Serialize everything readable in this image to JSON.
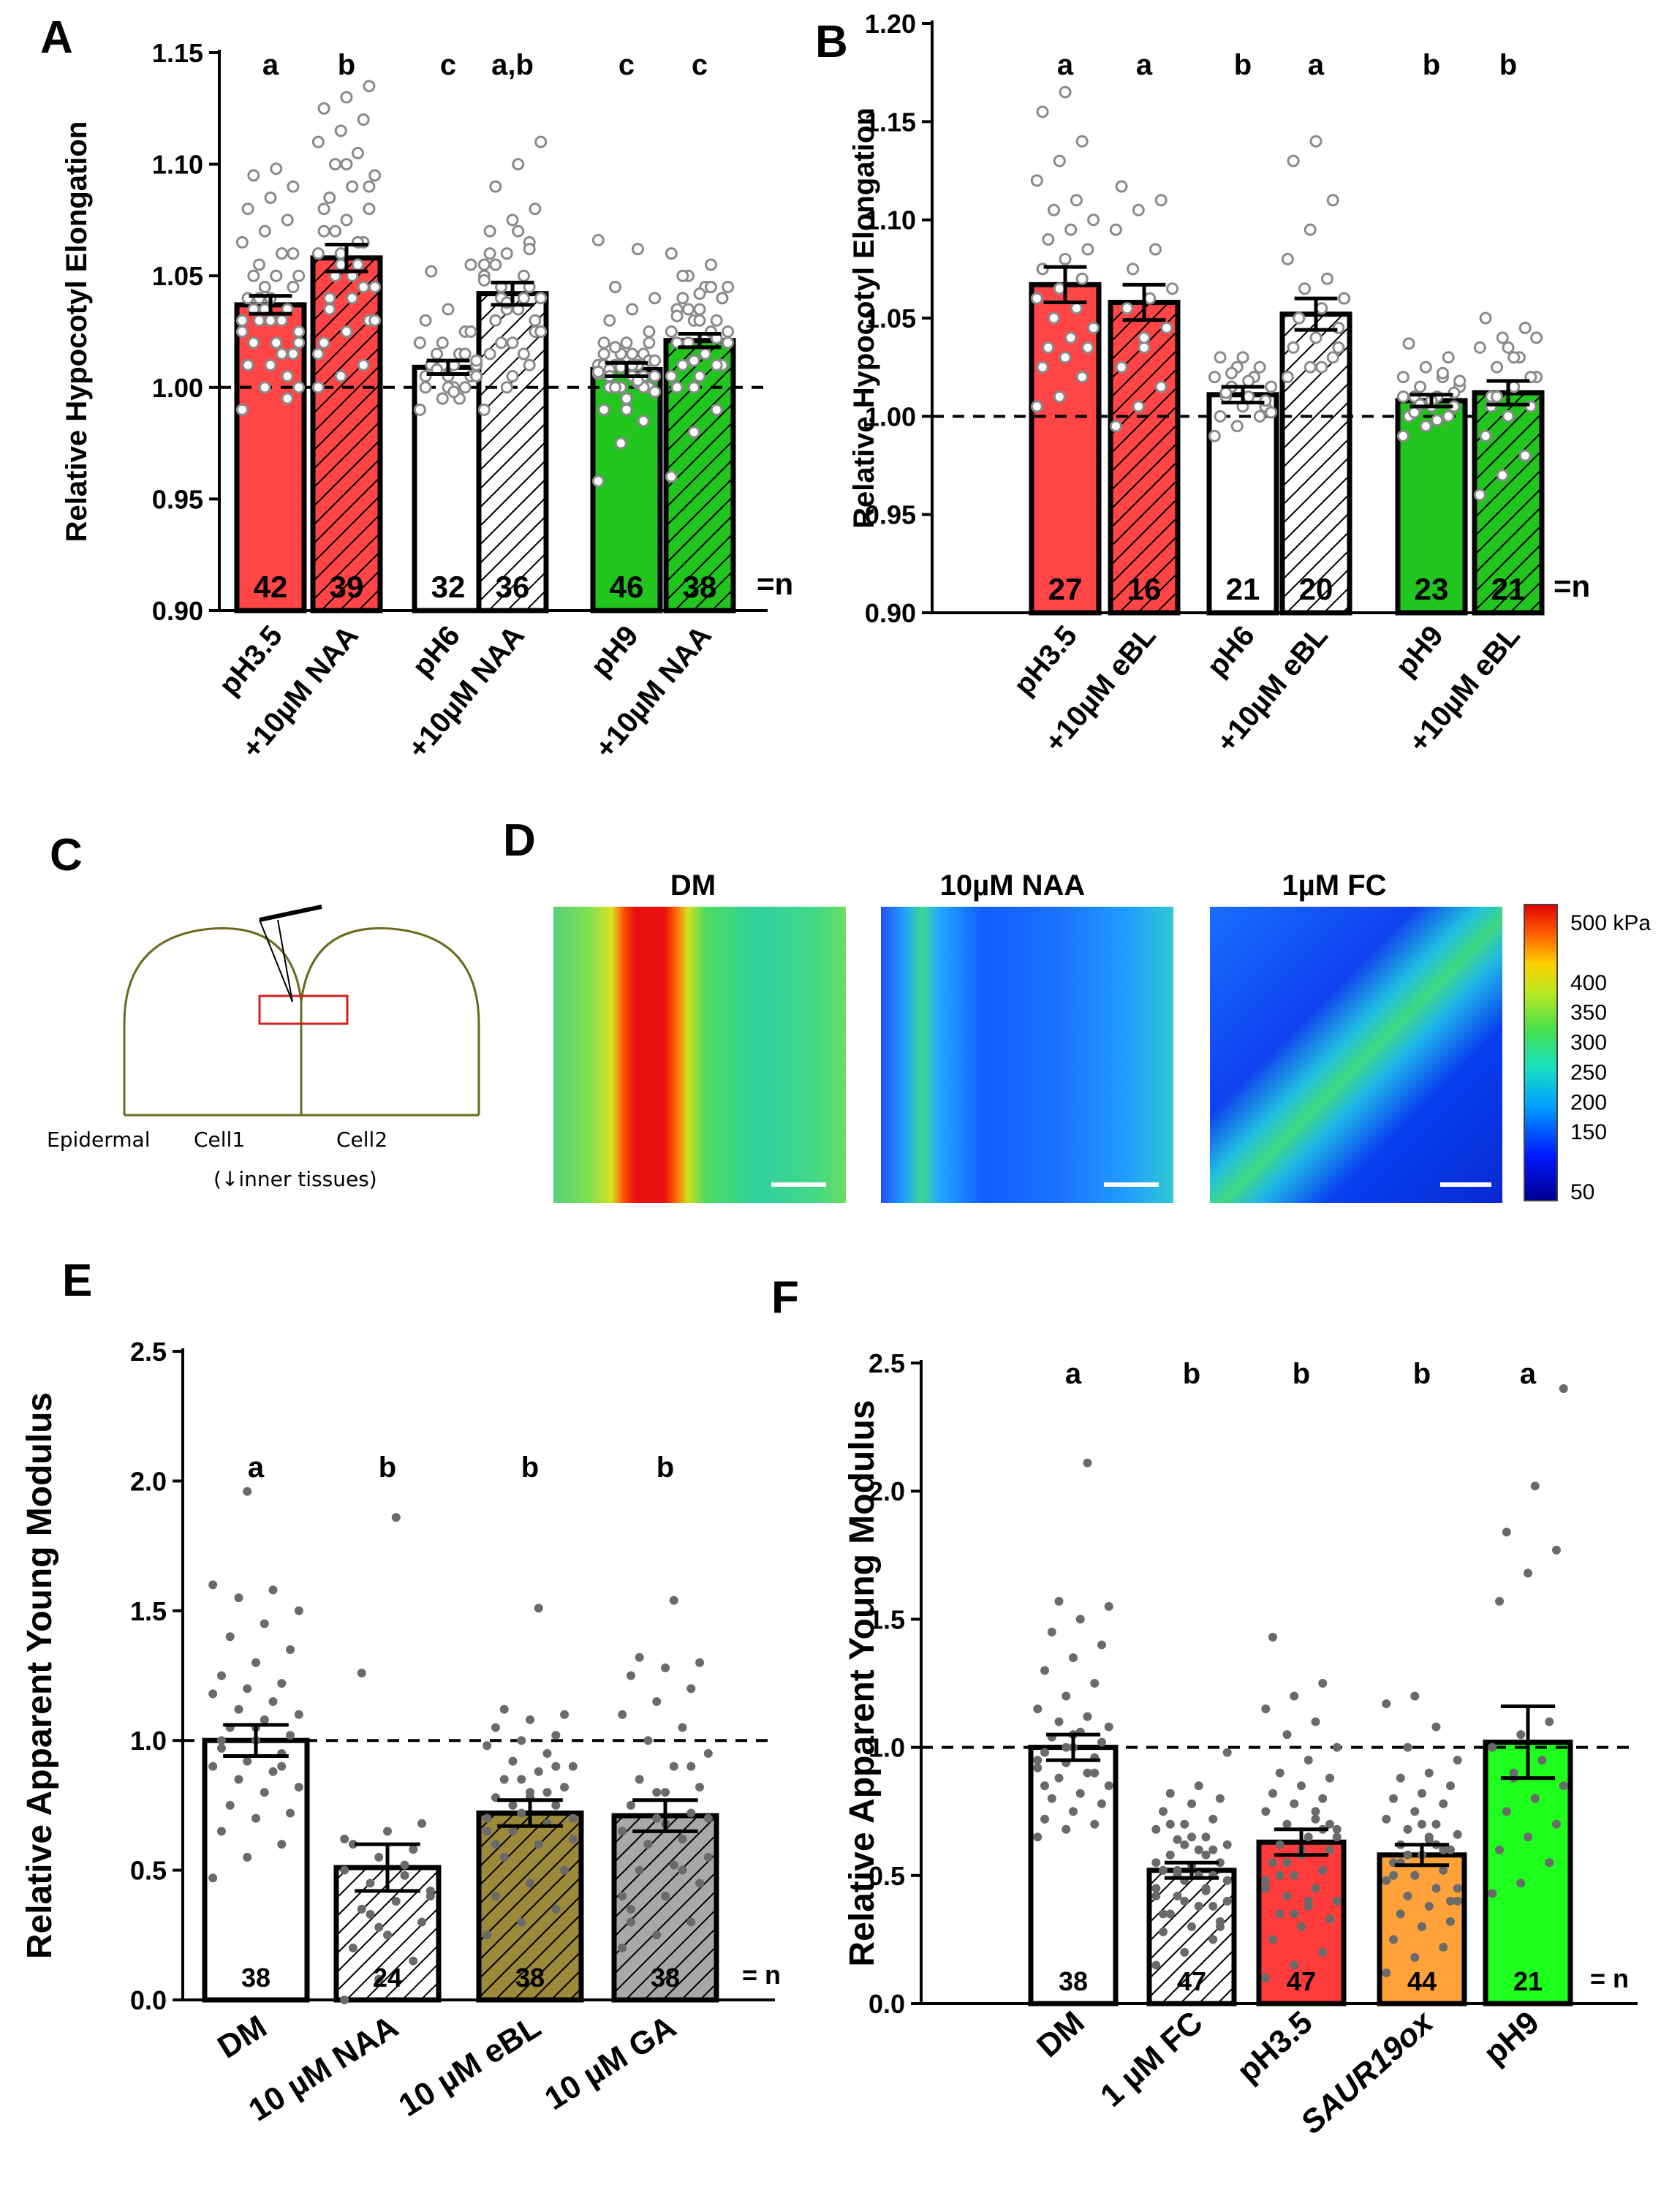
{
  "chart_data": [
    {
      "id": "A",
      "panel_letter": "A",
      "type": "bar",
      "ylabel": "Relative Hypocotyl Elongation",
      "ylim": [
        0.9,
        1.15
      ],
      "yticks": [
        "0.90",
        "0.95",
        "1.00",
        "1.05",
        "1.10",
        "1.15"
      ],
      "yticks_values": [
        0.9,
        0.95,
        1.0,
        1.05,
        1.1,
        1.15
      ],
      "reference_line": 1.0,
      "n_suffix": "=n",
      "categories": [
        [
          "pH3.5"
        ],
        [
          "+10µM NAA"
        ],
        [
          "pH6"
        ],
        [
          "+10µM NAA"
        ],
        [
          "pH9"
        ],
        [
          "+10µM NAA"
        ]
      ],
      "values": [
        1.037,
        1.058,
        1.009,
        1.042,
        1.008,
        1.021
      ],
      "errors": [
        0.004,
        0.006,
        0.003,
        0.005,
        0.003,
        0.003
      ],
      "n": [
        "42",
        "39",
        "32",
        "36",
        "46",
        "38"
      ],
      "letters": [
        "a",
        "b",
        "c",
        "a,b",
        "c",
        "c"
      ],
      "fills": [
        "#ff4545",
        "#ff4545",
        "#ffffff",
        "#ffffff",
        "#22c41e",
        "#22c41e"
      ],
      "hatched": [
        false,
        true,
        false,
        true,
        false,
        true
      ],
      "points": [
        [
          0.99,
          1.0,
          1.005,
          1.01,
          1.01,
          1.015,
          1.02,
          1.02,
          1.025,
          1.03,
          1.03,
          1.03,
          1.035,
          1.035,
          1.04,
          1.04,
          1.045,
          1.05,
          1.05,
          1.05,
          1.055,
          1.06,
          1.065,
          1.07,
          1.075,
          1.08,
          1.085,
          1.09,
          1.095,
          1.098,
          1.02,
          1.04,
          1.015,
          1.025,
          1.045,
          0.995,
          1.01,
          1.03,
          1.06,
          1.035,
          1.05,
          1.0
        ],
        [
          1.0,
          1.005,
          1.01,
          1.02,
          1.025,
          1.03,
          1.035,
          1.04,
          1.045,
          1.05,
          1.055,
          1.06,
          1.06,
          1.065,
          1.07,
          1.075,
          1.08,
          1.085,
          1.09,
          1.095,
          1.1,
          1.105,
          1.11,
          1.115,
          1.12,
          1.125,
          1.13,
          1.135,
          1.04,
          1.05,
          1.03,
          1.07,
          1.065,
          1.015,
          1.055,
          1.045,
          1.08,
          1.1,
          1.09
        ],
        [
          0.99,
          0.995,
          1.0,
          1.0,
          1.005,
          1.005,
          1.01,
          1.01,
          1.01,
          1.015,
          1.015,
          1.02,
          1.02,
          1.025,
          1.03,
          1.035,
          1.055,
          1.052,
          1.0,
          1.005,
          1.01,
          0.995,
          1.02,
          1.01,
          1.015,
          1.005,
          1.0,
          1.025,
          1.01,
          0.998,
          1.012,
          1.008
        ],
        [
          0.99,
          1.0,
          1.01,
          1.015,
          1.02,
          1.025,
          1.03,
          1.035,
          1.04,
          1.045,
          1.05,
          1.055,
          1.06,
          1.065,
          1.07,
          1.075,
          1.08,
          1.09,
          1.1,
          1.11,
          1.02,
          1.04,
          1.05,
          1.035,
          1.045,
          1.06,
          1.005,
          1.03,
          1.055,
          1.07,
          1.025,
          1.04,
          1.015,
          1.048,
          1.038,
          1.062
        ],
        [
          0.958,
          0.975,
          0.985,
          0.99,
          0.995,
          1.0,
          1.0,
          1.005,
          1.005,
          1.01,
          1.01,
          1.01,
          1.015,
          1.015,
          1.02,
          1.02,
          1.025,
          1.03,
          1.035,
          1.04,
          1.045,
          1.062,
          1.066,
          1.0,
          1.005,
          1.01,
          0.995,
          1.012,
          1.008,
          1.015,
          0.998,
          1.018,
          1.002,
          1.006,
          1.01,
          1.0,
          1.015,
          0.99,
          1.02,
          1.005,
          1.01,
          1.012,
          1.0,
          1.003,
          1.007,
          1.009
        ],
        [
          0.96,
          0.98,
          0.99,
          1.0,
          1.005,
          1.01,
          1.01,
          1.015,
          1.02,
          1.02,
          1.025,
          1.025,
          1.03,
          1.03,
          1.035,
          1.035,
          1.04,
          1.04,
          1.045,
          1.045,
          1.05,
          1.055,
          1.06,
          1.0,
          1.01,
          1.02,
          1.03,
          1.04,
          1.05,
          1.015,
          1.025,
          1.035,
          1.045,
          1.005,
          1.012,
          1.022,
          1.032,
          1.042
        ]
      ]
    },
    {
      "id": "B",
      "panel_letter": "B",
      "type": "bar",
      "ylabel": "Relative Hypocotyl Elongation",
      "ylim": [
        0.9,
        1.2
      ],
      "yticks": [
        "0.90",
        "0.95",
        "1.00",
        "1.05",
        "1.10",
        "1.15",
        "1.20"
      ],
      "yticks_values": [
        0.9,
        0.95,
        1.0,
        1.05,
        1.1,
        1.15,
        1.2
      ],
      "reference_line": 1.0,
      "n_suffix": "=n",
      "categories": [
        [
          "pH3.5"
        ],
        [
          "+10µM eBL"
        ],
        [
          "pH6"
        ],
        [
          "+10µM eBL"
        ],
        [
          "pH9"
        ],
        [
          "+10µM eBL"
        ]
      ],
      "values": [
        1.067,
        1.058,
        1.011,
        1.052,
        1.008,
        1.012
      ],
      "errors": [
        0.009,
        0.009,
        0.004,
        0.008,
        0.003,
        0.006
      ],
      "n": [
        "27",
        "16",
        "21",
        "20",
        "23",
        "21"
      ],
      "letters": [
        "a",
        "a",
        "b",
        "a",
        "b",
        "b"
      ],
      "fills": [
        "#ff4545",
        "#ff4545",
        "#ffffff",
        "#ffffff",
        "#22c41e",
        "#22c41e"
      ],
      "hatched": [
        false,
        true,
        false,
        true,
        false,
        true
      ],
      "points": [
        [
          1.005,
          1.01,
          1.02,
          1.025,
          1.03,
          1.035,
          1.035,
          1.04,
          1.045,
          1.05,
          1.055,
          1.06,
          1.065,
          1.07,
          1.075,
          1.08,
          1.085,
          1.09,
          1.095,
          1.1,
          1.105,
          1.11,
          1.12,
          1.13,
          1.14,
          1.155,
          1.165
        ],
        [
          0.995,
          1.005,
          1.015,
          1.025,
          1.035,
          1.045,
          1.055,
          1.06,
          1.065,
          1.075,
          1.085,
          1.095,
          1.105,
          1.11,
          1.117,
          1.04
        ],
        [
          0.99,
          0.995,
          1.0,
          1.0,
          1.005,
          1.005,
          1.01,
          1.01,
          1.015,
          1.015,
          1.02,
          1.02,
          1.025,
          1.025,
          1.03,
          1.03,
          1.008,
          1.012,
          1.018,
          1.002,
          1.022
        ],
        [
          1.02,
          1.025,
          1.03,
          1.035,
          1.04,
          1.045,
          1.05,
          1.055,
          1.06,
          1.065,
          1.07,
          1.08,
          1.095,
          1.11,
          1.13,
          1.14,
          1.035,
          1.05,
          1.025,
          1.06
        ],
        [
          0.99,
          0.995,
          1.0,
          1.0,
          1.005,
          1.005,
          1.01,
          1.01,
          1.015,
          1.015,
          1.02,
          1.02,
          1.025,
          1.03,
          1.037,
          1.008,
          1.012,
          1.002,
          0.998,
          1.018,
          1.006,
          1.022,
          1.01
        ],
        [
          0.96,
          0.97,
          0.98,
          0.99,
          1.0,
          1.005,
          1.01,
          1.015,
          1.02,
          1.025,
          1.03,
          1.035,
          1.04,
          1.045,
          1.05,
          1.035,
          1.02,
          1.005,
          1.03,
          1.04,
          1.01
        ]
      ]
    },
    {
      "id": "E",
      "panel_letter": "E",
      "type": "bar",
      "ylabel": "Relative Apparent Young Modulus",
      "ylim": [
        0.0,
        2.5
      ],
      "yticks": [
        "0.0",
        "0.5",
        "1.0",
        "1.5",
        "2.0",
        "2.5"
      ],
      "yticks_values": [
        0.0,
        0.5,
        1.0,
        1.5,
        2.0,
        2.5
      ],
      "reference_line": 1.0,
      "n_suffix": "= n",
      "categories": [
        [
          "DM"
        ],
        [
          "10 µM NAA"
        ],
        [
          "10 µM eBL"
        ],
        [
          "10 µM GA"
        ]
      ],
      "values": [
        1.0,
        0.51,
        0.72,
        0.71
      ],
      "errors": [
        0.06,
        0.09,
        0.05,
        0.06
      ],
      "n": [
        "38",
        "24",
        "38",
        "38"
      ],
      "letters": [
        "a",
        "b",
        "b",
        "b"
      ],
      "fills": [
        "#ffffff",
        "#ffffff",
        "#9c8a3a",
        "#a8a8a8"
      ],
      "hatched": [
        false,
        true,
        true,
        true
      ],
      "points": [
        [
          0.47,
          0.55,
          0.6,
          0.65,
          0.7,
          0.72,
          0.75,
          0.8,
          0.82,
          0.85,
          0.88,
          0.9,
          0.92,
          0.95,
          0.97,
          1.0,
          1.02,
          1.05,
          1.08,
          1.1,
          1.12,
          1.15,
          1.18,
          1.2,
          1.22,
          1.25,
          1.3,
          1.35,
          1.4,
          1.45,
          1.5,
          1.55,
          1.58,
          1.6,
          1.96,
          0.9,
          1.0,
          1.05
        ],
        [
          0.0,
          0.08,
          0.15,
          0.2,
          0.25,
          0.3,
          0.35,
          0.38,
          0.42,
          0.45,
          0.48,
          0.5,
          0.55,
          0.58,
          0.6,
          0.65,
          0.68,
          1.26,
          1.86,
          0.4,
          0.33,
          0.52,
          0.62,
          0.28
        ],
        [
          0.25,
          0.3,
          0.35,
          0.4,
          0.45,
          0.5,
          0.55,
          0.6,
          0.62,
          0.65,
          0.68,
          0.7,
          0.72,
          0.75,
          0.78,
          0.8,
          0.82,
          0.85,
          0.88,
          0.9,
          0.92,
          0.95,
          0.98,
          1.0,
          1.02,
          1.05,
          1.08,
          1.1,
          1.12,
          1.51,
          0.7,
          0.75,
          0.8,
          0.65,
          0.85,
          0.9,
          0.6,
          0.78
        ],
        [
          0.2,
          0.25,
          0.3,
          0.35,
          0.4,
          0.45,
          0.5,
          0.52,
          0.55,
          0.6,
          0.62,
          0.65,
          0.7,
          0.72,
          0.75,
          0.8,
          0.82,
          0.85,
          0.9,
          0.95,
          1.0,
          1.05,
          1.1,
          1.15,
          1.2,
          1.25,
          1.28,
          1.3,
          1.32,
          1.54,
          0.7,
          0.6,
          0.5,
          0.4,
          0.8,
          0.9,
          0.3,
          0.68
        ]
      ]
    },
    {
      "id": "F",
      "panel_letter": "F",
      "type": "bar",
      "ylabel": "Relative Apparent Young Modulus",
      "ylim": [
        0.0,
        2.5
      ],
      "yticks": [
        "0.0",
        "0.5",
        "1.0",
        "1.5",
        "2.0",
        "2.5"
      ],
      "yticks_values": [
        0.0,
        0.5,
        1.0,
        1.5,
        2.0,
        2.5
      ],
      "reference_line": 1.0,
      "n_suffix": "= n",
      "categories": [
        [
          "DM"
        ],
        [
          "1 µM FC"
        ],
        [
          "pH3.5"
        ],
        [
          "SAUR19ox"
        ],
        [
          "pH9"
        ]
      ],
      "categories_italic": [
        false,
        false,
        false,
        true,
        false
      ],
      "values": [
        1.0,
        0.52,
        0.63,
        0.58,
        1.02
      ],
      "errors": [
        0.05,
        0.03,
        0.05,
        0.04,
        0.14
      ],
      "n": [
        "38",
        "47",
        "47",
        "44",
        "21"
      ],
      "letters": [
        "a",
        "b",
        "b",
        "b",
        "a"
      ],
      "fills": [
        "#ffffff",
        "#ffffff",
        "#ff3b3b",
        "#ffa23a",
        "#1eff1e"
      ],
      "hatched": [
        false,
        true,
        false,
        false,
        false
      ],
      "points": [
        [
          0.65,
          0.68,
          0.7,
          0.72,
          0.75,
          0.78,
          0.8,
          0.82,
          0.85,
          0.88,
          0.9,
          0.92,
          0.94,
          0.96,
          0.98,
          1.0,
          1.02,
          1.04,
          1.06,
          1.08,
          1.1,
          1.12,
          1.15,
          1.2,
          1.25,
          1.3,
          1.35,
          1.4,
          1.45,
          1.5,
          1.55,
          1.57,
          2.11,
          0.95,
          1.0,
          0.9,
          0.85,
          1.05
        ],
        [
          0.15,
          0.2,
          0.25,
          0.28,
          0.3,
          0.32,
          0.35,
          0.38,
          0.4,
          0.42,
          0.44,
          0.45,
          0.48,
          0.5,
          0.52,
          0.54,
          0.55,
          0.58,
          0.6,
          0.62,
          0.64,
          0.65,
          0.68,
          0.7,
          0.72,
          0.75,
          0.78,
          0.8,
          0.82,
          0.85,
          0.98,
          0.5,
          0.45,
          0.55,
          0.4,
          0.6,
          0.35,
          0.65,
          0.3,
          0.7,
          0.5,
          0.48,
          0.52,
          0.58,
          0.42,
          0.62,
          0.38
        ],
        [
          0.1,
          0.15,
          0.2,
          0.25,
          0.3,
          0.33,
          0.35,
          0.38,
          0.4,
          0.42,
          0.45,
          0.48,
          0.5,
          0.52,
          0.55,
          0.58,
          0.6,
          0.62,
          0.65,
          0.68,
          0.7,
          0.72,
          0.75,
          0.78,
          0.8,
          0.82,
          0.85,
          0.88,
          0.9,
          0.95,
          1.0,
          1.05,
          1.1,
          1.15,
          1.2,
          1.25,
          1.43,
          0.6,
          0.7,
          0.5,
          0.4,
          0.65,
          0.55,
          0.75,
          0.45,
          0.35,
          0.68
        ],
        [
          0.12,
          0.18,
          0.22,
          0.25,
          0.3,
          0.32,
          0.35,
          0.38,
          0.4,
          0.42,
          0.45,
          0.48,
          0.5,
          0.52,
          0.55,
          0.58,
          0.6,
          0.62,
          0.64,
          0.66,
          0.68,
          0.7,
          0.72,
          0.75,
          0.78,
          0.8,
          0.82,
          0.85,
          0.88,
          0.9,
          0.95,
          1.0,
          1.08,
          1.17,
          1.2,
          0.6,
          0.5,
          0.7,
          0.4,
          0.55,
          0.65,
          0.45,
          0.58,
          0.62
        ],
        [
          0.43,
          0.47,
          0.55,
          0.6,
          0.65,
          0.7,
          0.75,
          0.8,
          0.85,
          0.9,
          0.95,
          1.0,
          1.05,
          1.1,
          1.57,
          1.68,
          1.77,
          1.84,
          2.02,
          2.4,
          0.88
        ]
      ]
    }
  ],
  "schematic": {
    "panel_letter": "C",
    "labels": {
      "epidermal": "Epidermal",
      "cell1": "Cell1",
      "cell2": "Cell2",
      "inner": "(↓inner tissues)"
    }
  },
  "heatmaps": {
    "panel_letter": "D",
    "titles": [
      "DM",
      "10µM NAA",
      "1µM FC"
    ],
    "colorbar_labels": [
      "500 kPa",
      "400",
      "350",
      "300",
      "250",
      "200",
      "150",
      "50"
    ],
    "colorbar_values": [
      500,
      400,
      350,
      300,
      250,
      200,
      150,
      50
    ]
  },
  "colors": {
    "point_open": "#8a8a8a",
    "point_filled": "#6a6a6a",
    "axis": "#000000"
  }
}
